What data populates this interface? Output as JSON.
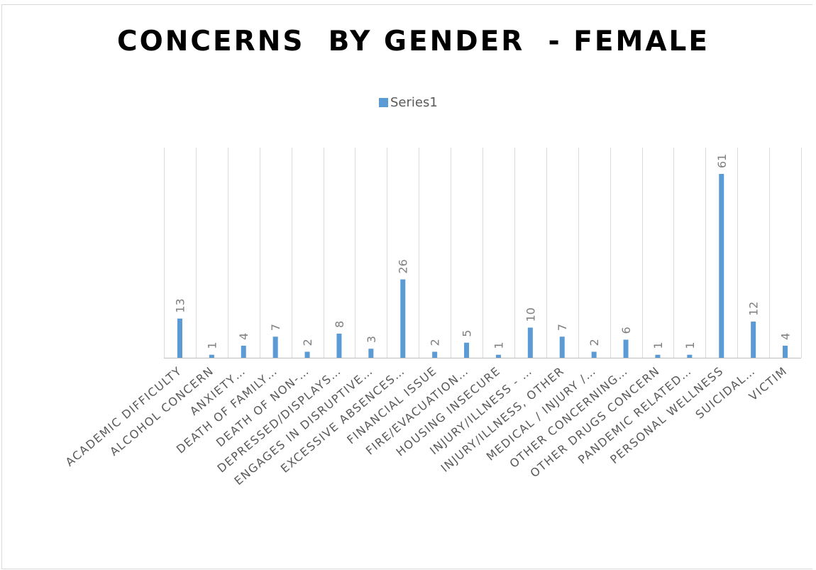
{
  "chart_data": {
    "type": "bar",
    "title": "CONCERNS  BY GENDER  - FEMALE",
    "xlabel": "",
    "ylabel": "",
    "ylim": [
      0,
      61
    ],
    "legend_position": "top",
    "grid": "vertical category lines",
    "categories": [
      "ACADEMIC DIFFICULTY",
      "ALCOHOL CONCERN",
      "ANXIETY…",
      "DEATH OF FAMILY…",
      "DEATH OF NON-…",
      "DEPRESSED/DISPLAYS…",
      "ENGAGES IN DISRUPTIVE…",
      "EXCESSIVE ABSENCES…",
      "FINANCIAL ISSUE",
      "FIRE/EVACUATION…",
      "HOUSING INSECURE",
      "INJURY/ILLNESS - …",
      "INJURY/ILLNESS, OTHER",
      "MEDICAL / INJURY /…",
      "OTHER CONCERNING…",
      "OTHER DRUGS CONCERN",
      "PANDEMIC RELATED…",
      "PERSONAL WELLNESS",
      "SUICIDAL…",
      "VICTIM"
    ],
    "series": [
      {
        "name": "Series1",
        "values": [
          13,
          1,
          4,
          7,
          2,
          8,
          3,
          26,
          2,
          5,
          1,
          10,
          7,
          2,
          6,
          1,
          1,
          61,
          12,
          4
        ]
      }
    ]
  },
  "colors": {
    "bar": "#5b9bd5",
    "grid": "#d9d9d9",
    "axis": "#bfbfbf",
    "label": "#595959",
    "data_label": "#7f7f7f",
    "title": "#000000"
  }
}
